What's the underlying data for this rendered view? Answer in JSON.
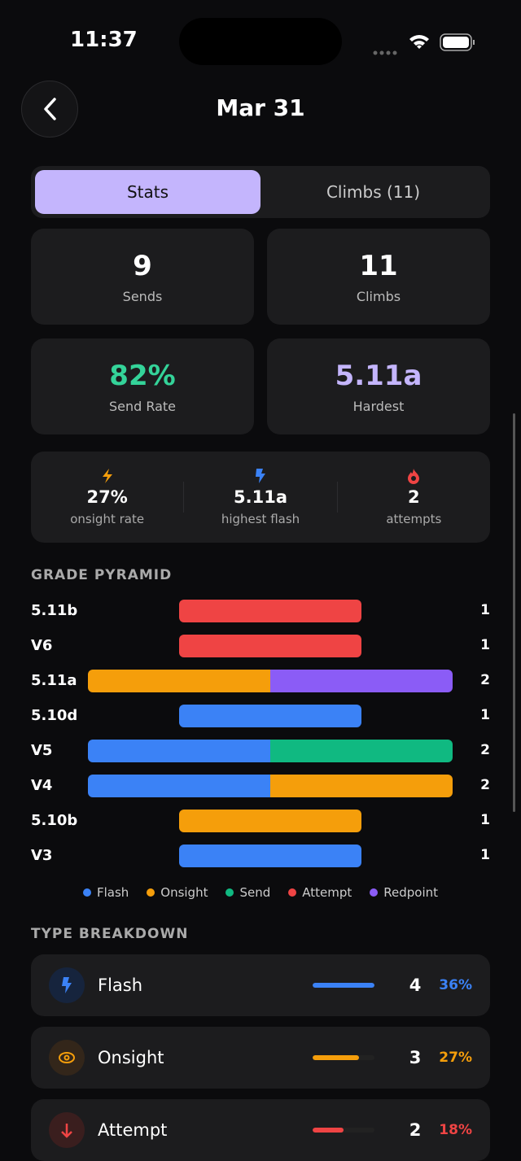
{
  "status": {
    "time": "11:37"
  },
  "header": {
    "title": "Mar 31"
  },
  "tabs": [
    {
      "label": "Stats",
      "active": true
    },
    {
      "label": "Climbs (11)",
      "active": false
    }
  ],
  "stats": [
    {
      "value": "9",
      "label": "Sends",
      "color": "#ffffff"
    },
    {
      "value": "11",
      "label": "Climbs",
      "color": "#ffffff"
    },
    {
      "value": "82%",
      "label": "Send Rate",
      "color": "#34d399"
    },
    {
      "value": "5.11a",
      "label": "Hardest",
      "color": "#c4b5fd"
    }
  ],
  "mini": [
    {
      "icon": "bolt-icon",
      "color": "#f59e0b",
      "value": "27%",
      "label": "onsight rate"
    },
    {
      "icon": "flash-icon",
      "color": "#3b82f6",
      "value": "5.11a",
      "label": "highest flash"
    },
    {
      "icon": "flame-icon",
      "color": "#ef4444",
      "value": "2",
      "label": "attempts"
    }
  ],
  "pyramid": {
    "title": "GRADE PYRAMID",
    "colors": {
      "Flash": "#3b82f6",
      "Onsight": "#f59e0b",
      "Send": "#10b981",
      "Attempt": "#ef4444",
      "Redpoint": "#8b5cf6"
    },
    "rows": [
      {
        "grade": "5.11b",
        "count": "1",
        "segments": [
          "Attempt"
        ]
      },
      {
        "grade": "V6",
        "count": "1",
        "segments": [
          "Attempt"
        ]
      },
      {
        "grade": "5.11a",
        "count": "2",
        "segments": [
          "Onsight",
          "Redpoint"
        ]
      },
      {
        "grade": "5.10d",
        "count": "1",
        "segments": [
          "Flash"
        ]
      },
      {
        "grade": "V5",
        "count": "2",
        "segments": [
          "Flash",
          "Send"
        ]
      },
      {
        "grade": "V4",
        "count": "2",
        "segments": [
          "Flash",
          "Onsight"
        ]
      },
      {
        "grade": "5.10b",
        "count": "1",
        "segments": [
          "Onsight"
        ]
      },
      {
        "grade": "V3",
        "count": "1",
        "segments": [
          "Flash"
        ]
      }
    ],
    "legend": [
      "Flash",
      "Onsight",
      "Send",
      "Attempt",
      "Redpoint"
    ]
  },
  "types": {
    "title": "TYPE BREAKDOWN",
    "items": [
      {
        "name": "Flash",
        "count": "4",
        "pct": "36%",
        "fraction": 1.0,
        "color": "#3b82f6",
        "bg": "#16243d",
        "icon": "flash-icon"
      },
      {
        "name": "Onsight",
        "count": "3",
        "pct": "27%",
        "fraction": 0.75,
        "color": "#f59e0b",
        "bg": "#33261a",
        "icon": "eye-icon"
      },
      {
        "name": "Attempt",
        "count": "2",
        "pct": "18%",
        "fraction": 0.5,
        "color": "#ef4444",
        "bg": "#3a1e1e",
        "icon": "arrow-down-icon"
      }
    ]
  }
}
